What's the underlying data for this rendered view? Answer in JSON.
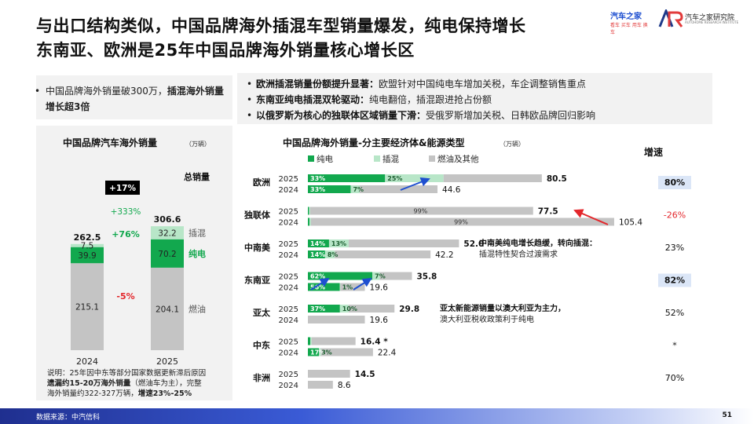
{
  "header": {
    "title_line1": "与出口结构类似，中国品牌海外插混车型销量爆发，纯电保持增长",
    "title_line2": "东南亚、欧洲是25年中国品牌海外销量核心增长区",
    "logo_autohome": "汽车之家",
    "logo_autohome_sub": "看车 买车 用车 换车",
    "logo_institute": "汽车之家研究院",
    "logo_institute_en": "AUTOHOME RESEARCH INSTITUTE"
  },
  "left_panel": {
    "bullet_plain": "中国品牌海外销量破300万，",
    "bullet_bold": "插混海外销量增长超3倍"
  },
  "right_panel": {
    "bullets": [
      {
        "key": "欧洲插混销量份额提升显著：",
        "text": "欧盟针对中国纯电车增加关税，车企调整销售重点"
      },
      {
        "key": "东南亚纯电插混双轮驱动：",
        "text": "纯电翻倍，插混跟进抢占份额"
      },
      {
        "key": "以俄罗斯为核心的独联体区域销量下滑：",
        "text": "受俄罗斯增加关税、日韩欧品牌回归影响"
      }
    ]
  },
  "note": {
    "line1": "说明：25年因中东等部分国家数据更新滞后原因",
    "line2_bold": "遗漏约15-20万海外销量",
    "line2": "（燃油车为主），完整",
    "line3": "海外销量约322-327万辆，",
    "line3_bold": "增速23%-25%"
  },
  "footer": {
    "source": "数据来源：中汽信科",
    "page": "51"
  },
  "colors": {
    "bev": "#12a84e",
    "phev": "#b8e6c8",
    "ice": "#c4c4c4",
    "accent_red": "#e3262b",
    "highlight": "#dbe6f7"
  },
  "chart_data": [
    {
      "type": "bar",
      "stacked": true,
      "title": "中国品牌汽车海外销量",
      "unit": "（万辆）",
      "categories": [
        "2024",
        "2025"
      ],
      "series": [
        {
          "name": "燃油",
          "values": [
            215.1,
            204.1
          ]
        },
        {
          "name": "纯电",
          "values": [
            39.9,
            70.2
          ]
        },
        {
          "name": "插混",
          "values": [
            7.5,
            32.2
          ]
        }
      ],
      "totals": [
        262.5,
        306.6
      ],
      "total_label": "总销量",
      "growth": {
        "total": "+17%",
        "phev": "+333%",
        "bev": "+76%",
        "ice": "-5%"
      }
    },
    {
      "type": "bar",
      "orientation": "horizontal",
      "stacked": true,
      "title": "中国品牌海外销量-分主要经济体&能源类型",
      "unit": "（万辆）",
      "legend": [
        "纯电",
        "插混",
        "燃油及其他"
      ],
      "growth_header": "增速",
      "regions": [
        {
          "name": "欧洲",
          "y2025": {
            "total": 80.5,
            "bev_pct": "33%",
            "phev_pct": "25%",
            "bev": 0.33,
            "phev": 0.25
          },
          "y2024": {
            "total": 44.6,
            "bev_pct": "33%",
            "phev_pct": "7%",
            "bev": 0.33,
            "phev": 0.07
          },
          "growth": "80%",
          "growth_style": "highlight"
        },
        {
          "name": "独联体",
          "y2025": {
            "total": 77.5,
            "bev_pct": "",
            "phev_pct": "",
            "ice_pct": "99%",
            "bev": 0.005,
            "phev": 0.005
          },
          "y2024": {
            "total": 105.4,
            "bev_pct": "",
            "phev_pct": "",
            "ice_pct": "99%",
            "bev": 0.005,
            "phev": 0.005
          },
          "growth": "-26%",
          "growth_style": "red"
        },
        {
          "name": "中南美",
          "y2025": {
            "total": 52.0,
            "bev_pct": "14%",
            "phev_pct": "13%",
            "bev": 0.14,
            "phev": 0.13
          },
          "y2024": {
            "total": 42.2,
            "bev_pct": "14%",
            "phev_pct": "8%",
            "bev": 0.14,
            "phev": 0.08
          },
          "growth": "23%",
          "growth_style": "plain"
        },
        {
          "name": "东南亚",
          "y2025": {
            "total": 35.8,
            "bev_pct": "62%",
            "phev_pct": "7%",
            "bev": 0.62,
            "phev": 0.07
          },
          "y2024": {
            "total": 19.6,
            "bev_pct": "56%",
            "phev_pct": "1%",
            "bev": 0.56,
            "phev": 0.01
          },
          "growth": "82%",
          "growth_style": "highlight"
        },
        {
          "name": "亚太",
          "y2025": {
            "total": 29.8,
            "bev_pct": "37%",
            "phev_pct": "10%",
            "bev": 0.37,
            "phev": 0.1
          },
          "y2024": {
            "total": 19.6,
            "bev_pct": "",
            "phev_pct": "",
            "bev": 0.0,
            "phev": 0.0
          },
          "growth": "52%",
          "growth_style": "plain"
        },
        {
          "name": "中东",
          "y2025": {
            "total": 16.4,
            "bev_pct": "",
            "phev_pct": "",
            "bev": 0.05,
            "phev": 0.03
          },
          "y2024": {
            "total": 22.4,
            "bev_pct": "17%",
            "phev_pct": "3%",
            "bev": 0.17,
            "phev": 0.03
          },
          "growth": "*",
          "growth_style": "plain",
          "total_2025_suffix": "*"
        },
        {
          "name": "非洲",
          "y2025": {
            "total": 14.5,
            "bev_pct": "",
            "phev_pct": "",
            "bev": 0.0,
            "phev": 0.0
          },
          "y2024": {
            "total": 8.6,
            "bev_pct": "",
            "phev_pct": "",
            "bev": 0.0,
            "phev": 0.0
          },
          "growth": "70%",
          "growth_style": "plain"
        }
      ],
      "year_labels": [
        "2025",
        "2024"
      ],
      "annotations": [
        {
          "bold": "中南美纯电增长趋缓，转向插混：",
          "text": "插混特性契合过渡需求"
        },
        {
          "bold": "亚太新能源销量以澳大利亚为主力，",
          "text": "澳大利亚税收政策利于纯电"
        }
      ]
    }
  ]
}
